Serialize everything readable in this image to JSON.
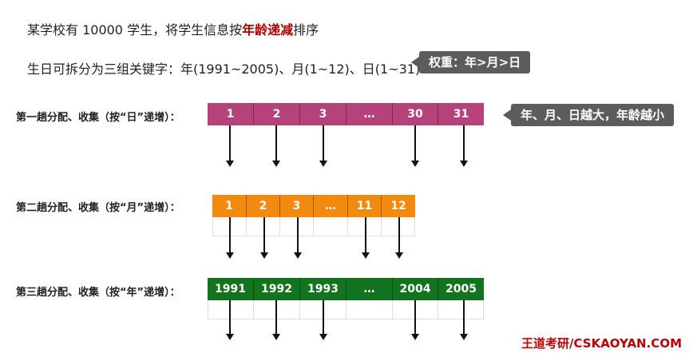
{
  "intro": {
    "line1_prefix": "某学校有 10000 学生，将学生信息按",
    "line1_highlight": "年龄递减",
    "line1_suffix": "排序",
    "line2": "生日可拆分为三组关键字：年(1991~2005)、月(1~12)、日(1~31)"
  },
  "callouts": {
    "weight": "权重：年>月>日",
    "rule": "年、月、日越大，年龄越小"
  },
  "passes": [
    {
      "label": "第一趟分配、收集（按“日”递增）：",
      "color": "#b5427a",
      "cells": [
        "1",
        "2",
        "3",
        "…",
        "30",
        "31"
      ]
    },
    {
      "label": "第二趟分配、收集（按“月”递增）：",
      "color": "#f28a0f",
      "cells": [
        "1",
        "2",
        "3",
        "…",
        "11",
        "12"
      ]
    },
    {
      "label": "第三趟分配、收集（按“年”递增）：",
      "color": "#12741f",
      "cells": [
        "1991",
        "1992",
        "1993",
        "…",
        "2004",
        "2005"
      ]
    }
  ],
  "watermark": "王道考研/CSKAOYAN.COM"
}
